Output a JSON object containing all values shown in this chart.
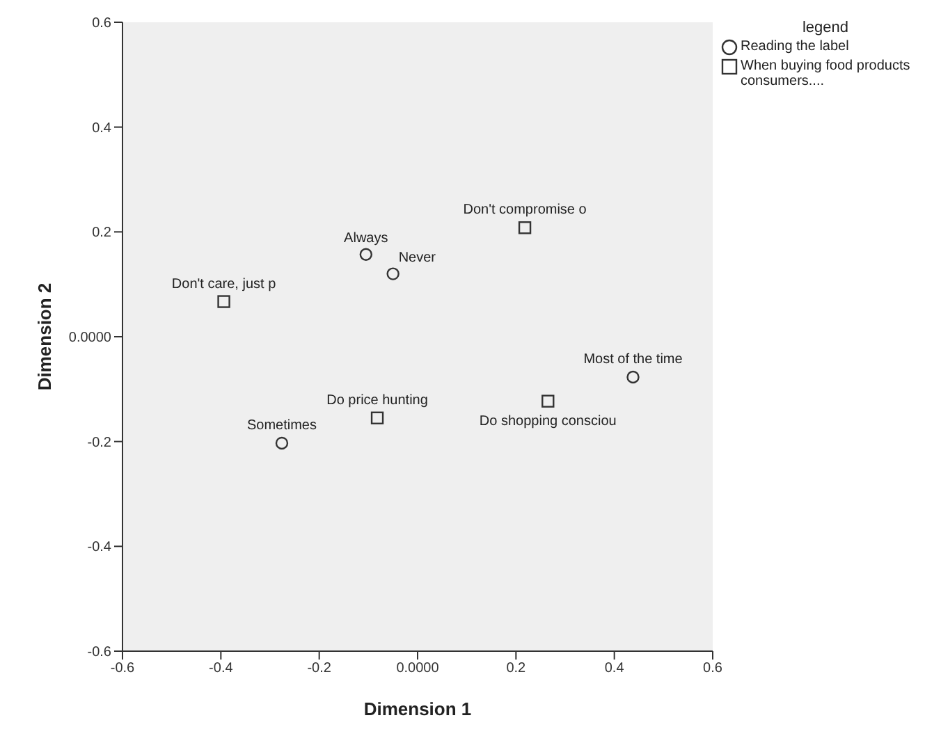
{
  "chart_data": {
    "type": "scatter",
    "xlabel": "Dimension 1",
    "ylabel": "Dimension 2",
    "legend_title": "legend",
    "legend": "top right",
    "xlim": [
      -0.6,
      0.6
    ],
    "ylim": [
      -0.6,
      0.6
    ],
    "xticks": [
      -0.6,
      -0.4,
      -0.2,
      {
        "value": 0,
        "label": "0.0000"
      },
      0.2,
      0.4,
      0.6
    ],
    "yticks": [
      -0.6,
      -0.4,
      -0.2,
      {
        "value": 0,
        "label": "0.0000"
      },
      0.2,
      0.4,
      0.6
    ],
    "grid": false,
    "series": [
      {
        "name": "Reading the label",
        "color": "#333333",
        "marker": "circle",
        "x": [
          -0.105,
          -0.05,
          0.438,
          -0.276
        ],
        "values": [
          0.157,
          0.12,
          -0.077,
          -0.203
        ]
      },
      {
        "name": "When buying food products consumers....",
        "color": "#333333",
        "marker": "square",
        "x": [
          -0.394,
          0.218,
          0.265,
          -0.082
        ],
        "values": [
          0.067,
          0.208,
          -0.123,
          -0.155
        ]
      }
    ],
    "annotations": [
      {
        "text": "Always",
        "x": -0.105,
        "y": 0.157
      },
      {
        "text": "Never",
        "x": -0.05,
        "y": 0.12
      },
      {
        "text": "Most of the time",
        "x": 0.438,
        "y": -0.077
      },
      {
        "text": "Sometimes",
        "x": -0.276,
        "y": -0.203
      },
      {
        "text": "Don't care, just p",
        "x": -0.394,
        "y": 0.067
      },
      {
        "text": "Don't compromise o",
        "x": 0.218,
        "y": 0.208
      },
      {
        "text": "Do shopping consciou",
        "x": 0.265,
        "y": -0.123
      },
      {
        "text": "Do price hunting",
        "x": -0.082,
        "y": -0.155
      }
    ]
  }
}
